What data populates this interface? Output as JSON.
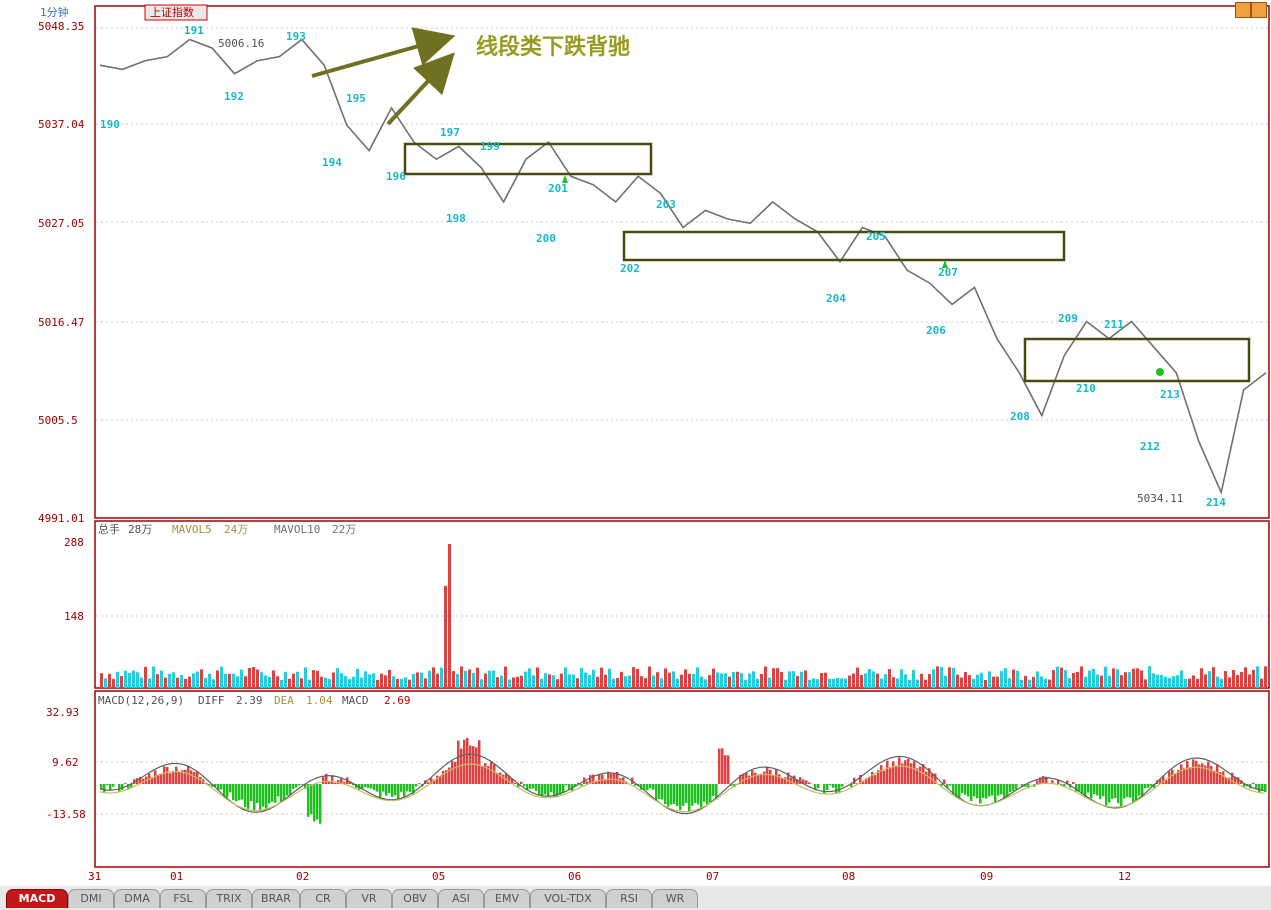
{
  "header": {
    "period": "1分钟",
    "index_name": "上证指数",
    "price_label": "5006.16"
  },
  "main_y_labels": [
    "5048.35",
    "5037.04",
    "5027.05",
    "5016.47",
    "5005.5",
    "4991.01"
  ],
  "annotation": {
    "title": "线段类下跌背驰"
  },
  "stroke_labels": [
    "190",
    "191",
    "192",
    "193",
    "194",
    "195",
    "196",
    "197",
    "198",
    "199",
    "200",
    "201",
    "202",
    "203",
    "204",
    "205",
    "206",
    "207",
    "208",
    "209",
    "210",
    "211",
    "212",
    "213",
    "214"
  ],
  "price_note": "5034.11",
  "volume_panel": {
    "header_prefix": "总手",
    "header_value": "28万",
    "ma5_label": "MAVOL5",
    "ma5_value": "24万",
    "ma10_label": "MAVOL10",
    "ma10_value": "22万",
    "y_labels": [
      "288",
      "148"
    ]
  },
  "macd_panel": {
    "header": "MACD(12,26,9)",
    "diff_label": "DIFF",
    "diff_value": "2.39",
    "dea_label": "DEA",
    "dea_value": "1.04",
    "macd_label": "MACD",
    "macd_value": "2.69",
    "y_labels": [
      "32.93",
      "9.62",
      "-13.58"
    ]
  },
  "x_labels": [
    "31",
    "01",
    "02",
    "05",
    "06",
    "07",
    "08",
    "09",
    "12"
  ],
  "tabs": [
    "MACD",
    "DMI",
    "DMA",
    "FSL",
    "TRIX",
    "BRAR",
    "CR",
    "VR",
    "OBV",
    "ASI",
    "EMV",
    "VOL-TDX",
    "RSI",
    "WR"
  ],
  "colors": {
    "price_line": "#707070",
    "stroke_label": "#18b8c8",
    "box": "#4a4a10",
    "arrow": "#707020",
    "title": "#9a9a20",
    "bar_up": "#e04040",
    "bar_down": "#20d0e0",
    "hist_pos": "#e04040",
    "hist_neg": "#20c020",
    "diff_line": "#606060",
    "dea_line": "#c0c060",
    "axis": "#a00000"
  },
  "chart_data": [
    {
      "type": "line",
      "title": "上证指数 1分钟",
      "y_ticks": [
        5048.35,
        5037.04,
        5027.05,
        5016.47,
        5005.5,
        4991.01
      ],
      "ylim": [
        4991.01,
        5048.35
      ],
      "x_ticks": [
        "31",
        "01",
        "02",
        "05",
        "06",
        "07",
        "08",
        "09",
        "12"
      ],
      "series": [
        {
          "values": [
            5044,
            5043.5,
            5044.5,
            5045,
            5047,
            5046,
            5043,
            5044.5,
            5045,
            5047,
            5044,
            5037,
            5034,
            5039,
            5035,
            5033,
            5034.5,
            5032,
            5028,
            5033,
            5035,
            5031,
            5030,
            5028,
            5031,
            5029,
            5025,
            5027,
            5026,
            5025.5,
            5028,
            5026,
            5024.5,
            5021,
            5025,
            5024,
            5020,
            5018.5,
            5016,
            5018,
            5012,
            5008,
            5003,
            5010,
            5014,
            5012,
            5014,
            5011,
            5008,
            5000,
            4994,
            5006,
            5008
          ]
        }
      ]
    },
    {
      "type": "bar",
      "title": "VOL",
      "y_ticks": [
        288,
        148
      ],
      "ylim": [
        0,
        288
      ],
      "series": [
        {
          "name": "MAVOL5",
          "values": [
            24
          ]
        },
        {
          "name": "MAVOL10",
          "values": [
            22
          ]
        }
      ]
    },
    {
      "type": "bar",
      "title": "MACD(12,26,9)",
      "y_ticks": [
        32.93,
        9.62,
        -13.58
      ],
      "ylim": [
        -25,
        40
      ],
      "series": [
        {
          "name": "DIFF",
          "values": [
            2.39
          ]
        },
        {
          "name": "DEA",
          "values": [
            1.04
          ]
        },
        {
          "name": "MACD",
          "values": [
            2.69
          ]
        }
      ]
    }
  ]
}
